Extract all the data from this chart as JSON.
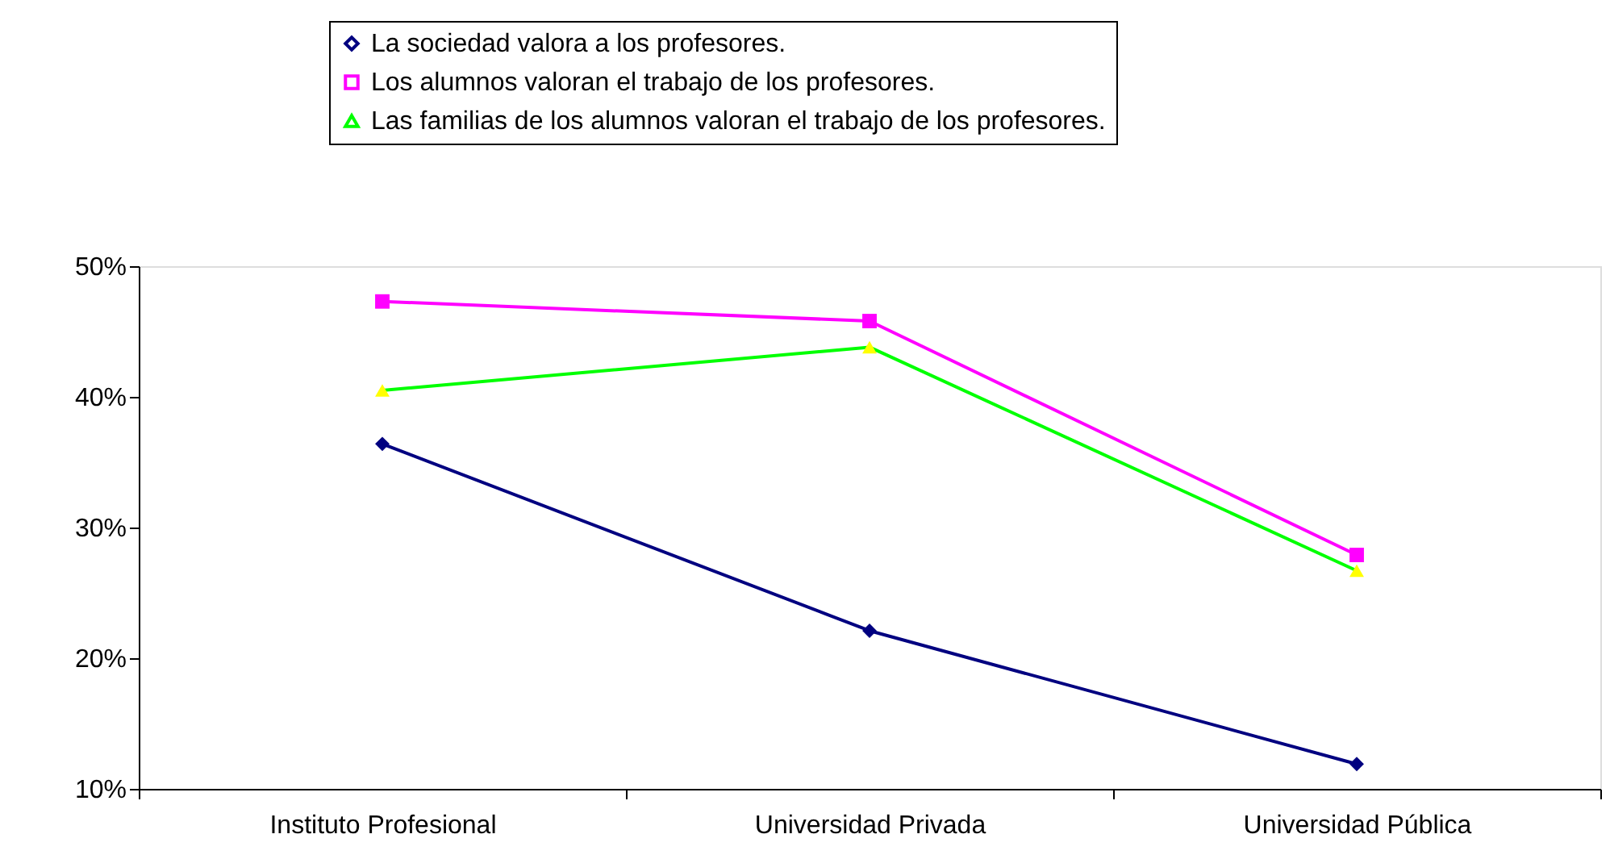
{
  "chart_data": {
    "type": "line",
    "categories": [
      "Instituto Profesional",
      "Universidad Privada",
      "Universidad Pública"
    ],
    "series": [
      {
        "name": "La sociedad valora a los profesores.",
        "color": "#000080",
        "marker": "diamond",
        "values": [
          36.4,
          22.1,
          11.9
        ]
      },
      {
        "name": "Los alumnos valoran el trabajo de los profesores.",
        "color": "#ff00ff",
        "marker": "square",
        "values": [
          47.3,
          45.8,
          27.9
        ]
      },
      {
        "name": "Las familias de los alumnos valoran el trabajo de los profesores.",
        "color": "#00ff00",
        "colors": [
          "#ffff00",
          "#ffff00",
          "#ffff00"
        ],
        "marker": "triangle",
        "values": [
          40.5,
          43.8,
          26.7
        ]
      }
    ],
    "ylim": [
      10,
      50
    ],
    "yticks": [
      {
        "value": 10,
        "label": "10%"
      },
      {
        "value": 20,
        "label": "20%"
      },
      {
        "value": 30,
        "label": "30%"
      },
      {
        "value": 40,
        "label": "40%"
      },
      {
        "value": 50,
        "label": "50%"
      }
    ],
    "grid": false,
    "legend": "top",
    "line_style": "solid"
  }
}
